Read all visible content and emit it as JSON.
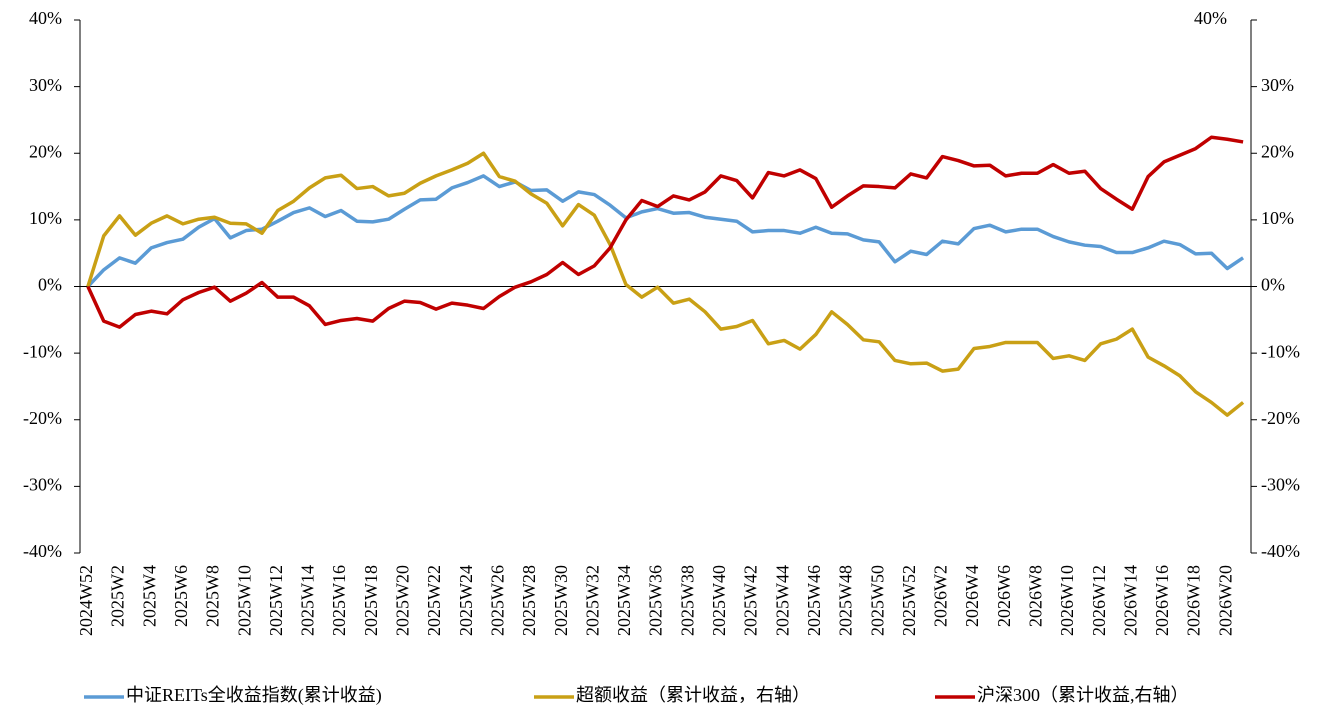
{
  "chart_data": {
    "type": "line",
    "categories": [
      "2024W52",
      null,
      "2025W2",
      null,
      "2025W4",
      null,
      "2025W6",
      null,
      "2025W8",
      null,
      "2025W10",
      null,
      "2025W12",
      null,
      "2025W14",
      null,
      "2025W16",
      null,
      "2025W18",
      null,
      "2025W20",
      null,
      "2025W22",
      null,
      "2025W24",
      null,
      "2025W26",
      null,
      "2025W28",
      null,
      "2025W30",
      null,
      "2025W32",
      null,
      "2025W34",
      null,
      "2025W36",
      null,
      "2025W38",
      null,
      "2025W40",
      null,
      "2025W42",
      null,
      "2025W44",
      null,
      "2025W46",
      null,
      "2025W48",
      null,
      "2025W50",
      null,
      "2025W52",
      null,
      "2026W2",
      null,
      "2026W4",
      null,
      "2026W6",
      null,
      "2026W8",
      null,
      "2026W10",
      null,
      "2026W12",
      null,
      "2026W14",
      null,
      "2026W16",
      null,
      "2026W18",
      null,
      "2026W20",
      null
    ],
    "series": [
      {
        "name": "中证REITs全收益指数(累计收益)",
        "color": "#5b9bd5",
        "values": [
          0,
          2.5,
          4.3,
          3.5,
          5.8,
          6.6,
          7.1,
          8.9,
          10.2,
          7.3,
          8.4,
          8.6,
          9.8,
          11.1,
          11.8,
          10.5,
          11.4,
          9.8,
          9.7,
          10.1,
          11.6,
          13.0,
          13.1,
          14.8,
          15.6,
          16.6,
          15.0,
          15.7,
          14.4,
          14.5,
          12.8,
          14.2,
          13.8,
          12.2,
          10.3,
          11.2,
          11.7,
          11.0,
          11.1,
          10.4,
          10.1,
          9.8,
          8.2,
          8.4,
          8.4,
          8.0,
          8.9,
          8.0,
          7.9,
          7.0,
          6.7,
          3.7,
          5.3,
          4.8,
          6.8,
          6.4,
          8.7,
          9.2,
          8.2,
          8.6,
          8.6,
          7.5,
          6.7,
          6.2,
          6.0,
          5.1,
          5.1,
          5.8,
          6.8,
          6.3,
          4.9,
          5.0,
          2.7,
          4.3
        ]
      },
      {
        "name": "超额收益（累计收益，右轴）",
        "color": "#c9a015",
        "axis": "y2",
        "values": [
          0,
          7.6,
          10.6,
          7.7,
          9.5,
          10.6,
          9.4,
          10.1,
          10.4,
          9.5,
          9.4,
          8.0,
          11.4,
          12.8,
          14.8,
          16.3,
          16.7,
          14.7,
          15.0,
          13.6,
          14.0,
          15.5,
          16.6,
          17.5,
          18.5,
          20.0,
          16.5,
          15.8,
          13.9,
          12.5,
          9.1,
          12.3,
          10.7,
          6.3,
          0.3,
          -1.6,
          -0.1,
          -2.5,
          -1.9,
          -3.8,
          -6.4,
          -6.0,
          -5.1,
          -8.6,
          -8.1,
          -9.4,
          -7.2,
          -3.8,
          -5.7,
          -8.0,
          -8.3,
          -11.1,
          -11.6,
          -11.5,
          -12.7,
          -12.4,
          -9.3,
          -9.0,
          -8.4,
          -8.4,
          -8.4,
          -10.8,
          -10.4,
          -11.1,
          -8.6,
          -7.9,
          -6.4,
          -10.6,
          -11.9,
          -13.4,
          -15.8,
          -17.4,
          -19.3,
          -17.4
        ]
      },
      {
        "name": "沪深300（累计收益,右轴）",
        "color": "#c00000",
        "axis": "y2",
        "values": [
          0,
          -5.2,
          -6.1,
          -4.2,
          -3.7,
          -4.1,
          -2.0,
          -0.9,
          -0.1,
          -2.2,
          -1.0,
          0.6,
          -1.6,
          -1.6,
          -2.9,
          -5.7,
          -5.1,
          -4.8,
          -5.2,
          -3.3,
          -2.2,
          -2.4,
          -3.4,
          -2.5,
          -2.8,
          -3.3,
          -1.5,
          -0.1,
          0.7,
          1.8,
          3.6,
          1.8,
          3.1,
          5.8,
          10.0,
          12.9,
          12.0,
          13.6,
          13.0,
          14.2,
          16.6,
          15.9,
          13.3,
          17.1,
          16.6,
          17.5,
          16.2,
          11.9,
          13.6,
          15.1,
          15.0,
          14.8,
          16.9,
          16.3,
          19.5,
          18.9,
          18.1,
          18.2,
          16.6,
          17.0,
          17.0,
          18.3,
          17.0,
          17.3,
          14.7,
          13.1,
          11.6,
          16.5,
          18.7,
          19.7,
          20.7,
          22.4,
          22.1,
          21.7
        ]
      }
    ],
    "ylim": [
      -40,
      40
    ],
    "yticks": [
      {
        "value": -40,
        "label": "-40%"
      },
      {
        "value": -30,
        "label": "-30%"
      },
      {
        "value": -20,
        "label": "-20%"
      },
      {
        "value": -10,
        "label": "-10%"
      },
      {
        "value": 0,
        "label": "0%"
      },
      {
        "value": 10,
        "label": "10%"
      },
      {
        "value": 20,
        "label": "20%"
      },
      {
        "value": 30,
        "label": "30%"
      },
      {
        "value": 40,
        "label": "40%"
      }
    ],
    "y2lim": [
      -40,
      40
    ],
    "y2ticks": [
      {
        "value": -40,
        "label": "-40%"
      },
      {
        "value": -30,
        "label": "-30%"
      },
      {
        "value": -20,
        "label": "-20%"
      },
      {
        "value": -10,
        "label": "-10%"
      },
      {
        "value": 0,
        "label": "0%"
      },
      {
        "value": 10,
        "label": "10%"
      },
      {
        "value": 20,
        "label": "20%"
      },
      {
        "value": 30,
        "label": "30%"
      },
      {
        "value": 40,
        "label": "40%"
      }
    ],
    "legend": "bottom"
  }
}
